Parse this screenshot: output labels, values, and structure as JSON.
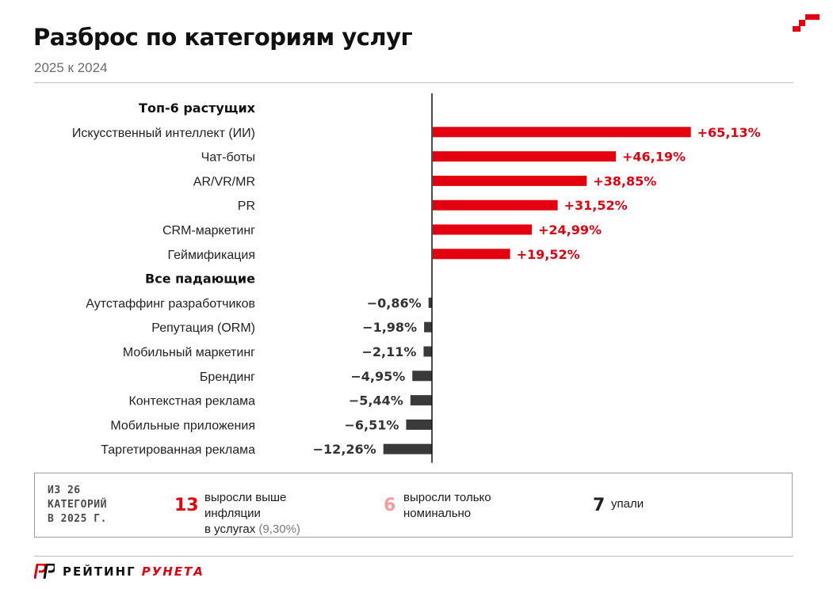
{
  "header": {
    "title": "Разброс по категориям услуг",
    "subtitle": "2025 к 2024"
  },
  "colors": {
    "accent": "#e3000f",
    "negative": "#3a3a3a",
    "muted_pink": "#f19aa2"
  },
  "chart_data": {
    "type": "bar",
    "orientation": "horizontal",
    "groups": [
      {
        "heading": "Топ-6 растущих",
        "color": "#e3000f",
        "categories": [
          "Искусственный интеллект (ИИ)",
          "Чат-боты",
          "AR/VR/MR",
          "PR",
          "CRM-маркетинг",
          "Геймификация"
        ],
        "values": [
          65.13,
          46.19,
          38.85,
          31.52,
          24.99,
          19.52
        ],
        "labels": [
          "+65,13%",
          "+46,19%",
          "+38,85%",
          "+31,52%",
          "+24,99%",
          "+19,52%"
        ]
      },
      {
        "heading": "Все падающие",
        "color": "#3a3a3a",
        "categories": [
          "Аутстаффинг разработчиков",
          "Репутация (ORM)",
          "Мобильный маркетинг",
          "Брендинг",
          "Контекстная реклама",
          "Мобильные приложения",
          "Таргетированная реклама"
        ],
        "values": [
          -0.86,
          -1.98,
          -2.11,
          -4.95,
          -5.44,
          -6.51,
          -12.26
        ],
        "labels": [
          "−0,86%",
          "−1,98%",
          "−2,11%",
          "−4,95%",
          "−5,44%",
          "−6,51%",
          "−12,26%"
        ]
      }
    ],
    "xlim": [
      -14,
      75
    ],
    "grid": false
  },
  "summary": {
    "heading_lines": [
      "ИЗ 26",
      "КАТЕГОРИЙ",
      "В 2025 Г."
    ],
    "stats": [
      {
        "number": "13",
        "color": "#e3000f",
        "text_lines": [
          "выросли выше",
          "инфляции",
          "в услугах"
        ],
        "note": "(9,30%)"
      },
      {
        "number": "6",
        "color": "#f19aa2",
        "text_lines": [
          "выросли только",
          "номинально"
        ]
      },
      {
        "number": "7",
        "color": "#222222",
        "text_lines": [
          "упали"
        ]
      }
    ]
  },
  "footer": {
    "brand_word1": "РЕЙТИНГ",
    "brand_word2": "РУНЕТА"
  }
}
